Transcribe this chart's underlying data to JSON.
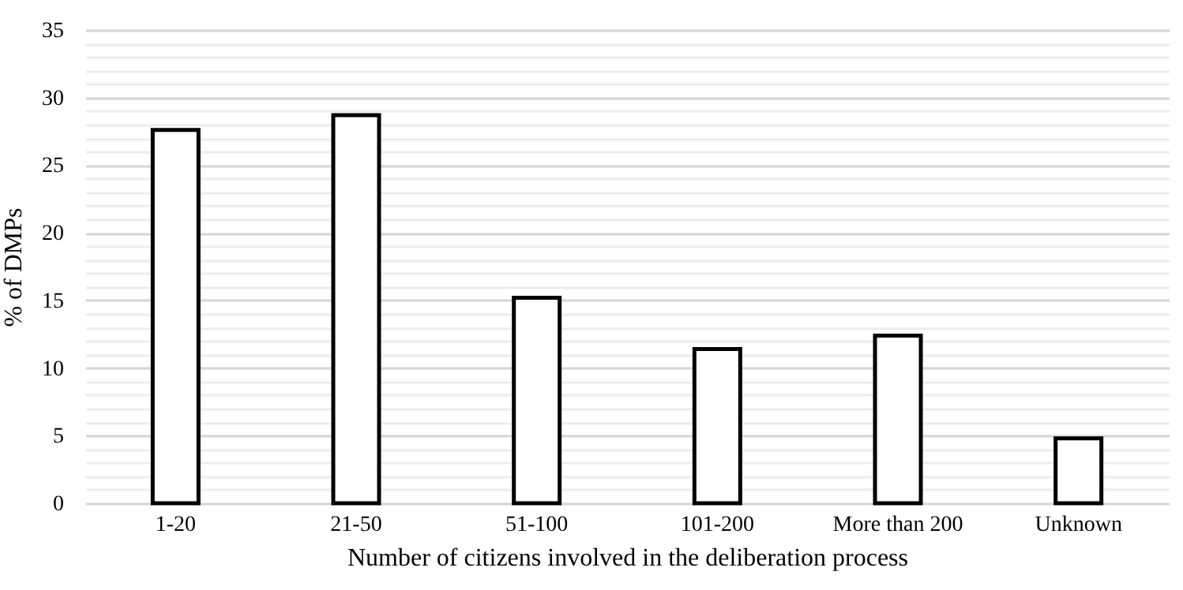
{
  "chart_data": {
    "type": "bar",
    "xlabel": "Number of citizens involved in the deliberation process",
    "ylabel": "% of DMPs",
    "categories": [
      "1-20",
      "21-50",
      "51-100",
      "101-200",
      "More than 200",
      "Unknown"
    ],
    "values": [
      27.6,
      28.7,
      15.2,
      11.4,
      12.4,
      4.8
    ],
    "color": "#ffffff",
    "ylim": [
      0,
      35
    ],
    "yticks": [
      0,
      {
        "value": 1,
        "label": null
      },
      {
        "value": 2,
        "label": null
      },
      {
        "value": 3,
        "label": null
      },
      {
        "value": 4,
        "label": null
      },
      5,
      {
        "value": 6,
        "label": null
      },
      {
        "value": 7,
        "label": null
      },
      {
        "value": 8,
        "label": null
      },
      {
        "value": 9,
        "label": null
      },
      10,
      {
        "value": 11,
        "label": null
      },
      {
        "value": 12,
        "label": null
      },
      {
        "value": 13,
        "label": null
      },
      {
        "value": 14,
        "label": null
      },
      15,
      {
        "value": 16,
        "label": null
      },
      {
        "value": 17,
        "label": null
      },
      {
        "value": 18,
        "label": null
      },
      {
        "value": 19,
        "label": null
      },
      20,
      {
        "value": 21,
        "label": null
      },
      {
        "value": 22,
        "label": null
      },
      {
        "value": 23,
        "label": null
      },
      {
        "value": 24,
        "label": null
      },
      25,
      {
        "value": 26,
        "label": null
      },
      {
        "value": 27,
        "label": null
      },
      {
        "value": 28,
        "label": null
      },
      {
        "value": 29,
        "label": null
      },
      30,
      {
        "value": 31,
        "label": null
      },
      {
        "value": 32,
        "label": null
      },
      {
        "value": 33,
        "label": null
      },
      {
        "value": 34,
        "label": null
      },
      35
    ],
    "grid": true
  }
}
